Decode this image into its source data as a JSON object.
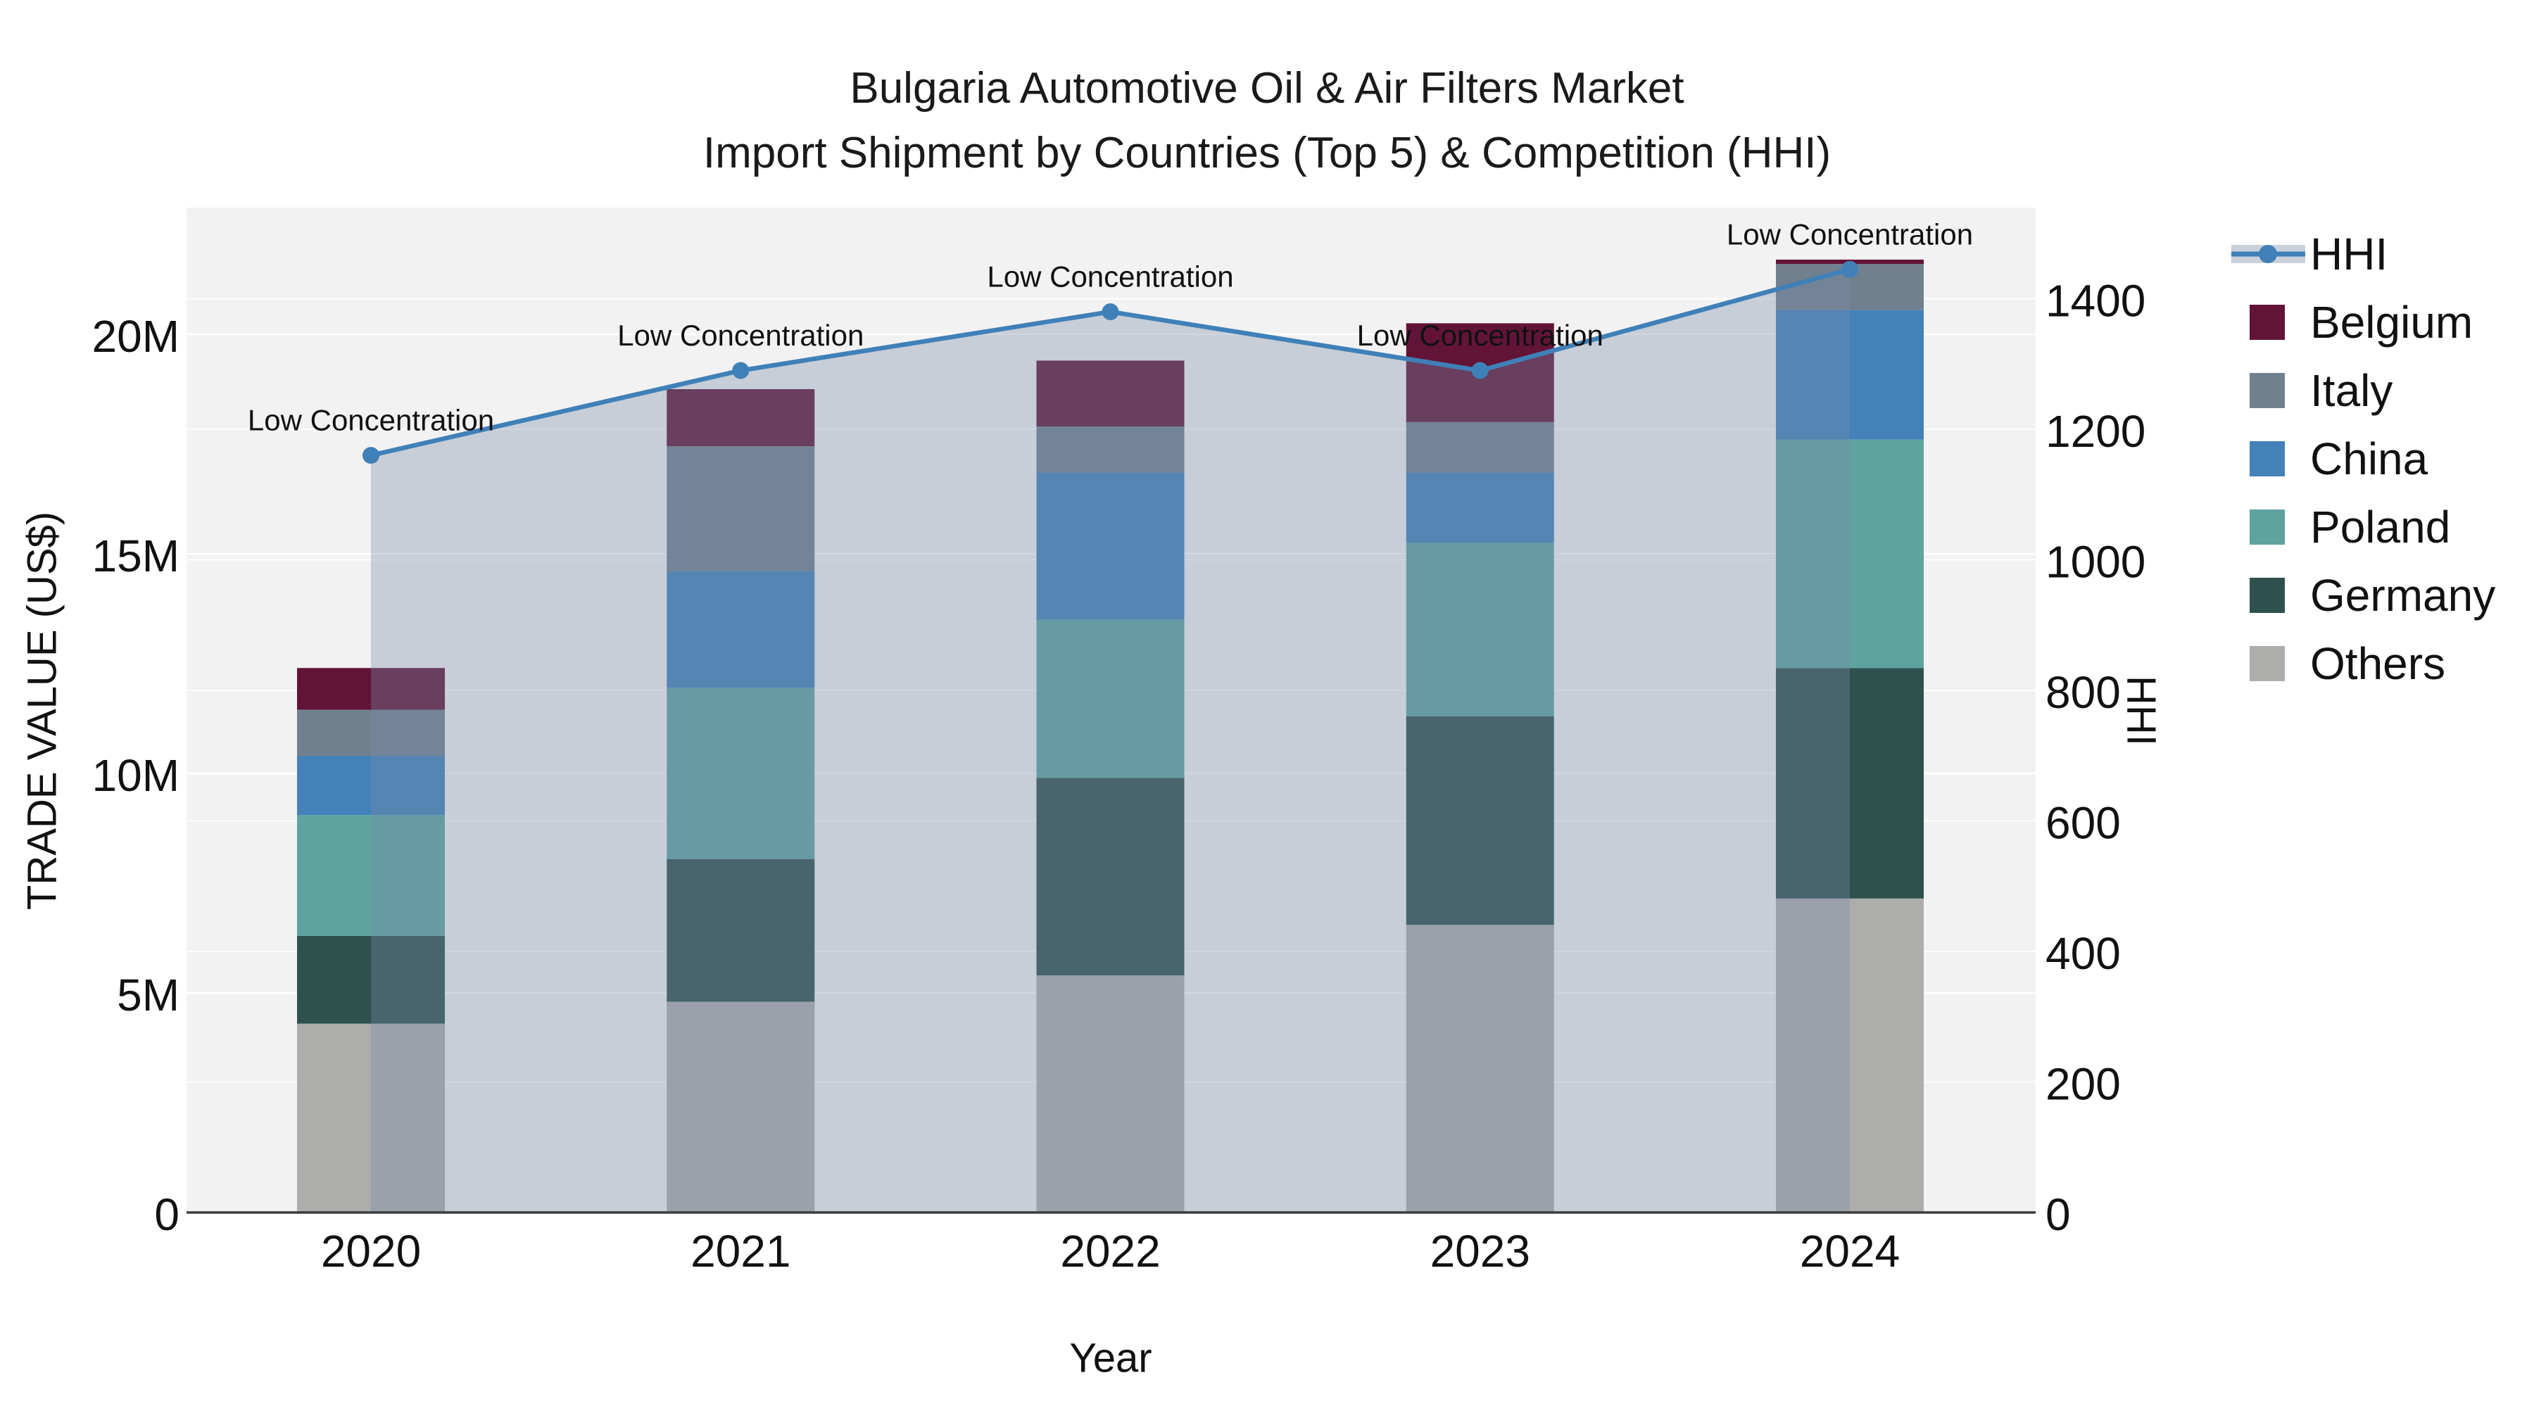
{
  "title": {
    "line1": "Bulgaria Automotive Oil & Air Filters Market",
    "line2": "Import Shipment by Countries (Top 5) & Competition (HHI)"
  },
  "axes": {
    "x_title": "Year",
    "y_left_title": "TRADE VALUE (US$)",
    "y_right_title": "HHI",
    "y_left_ticks": [
      {
        "label": "0",
        "value": 0
      },
      {
        "label": "5M",
        "value": 5
      },
      {
        "label": "10M",
        "value": 10
      },
      {
        "label": "15M",
        "value": 15
      },
      {
        "label": "20M",
        "value": 20
      }
    ],
    "y_right_ticks": [
      0,
      200,
      400,
      600,
      800,
      1000,
      1200,
      1400
    ]
  },
  "chart_data": {
    "type": "combo-stacked-bar-line",
    "categories": [
      "2020",
      "2021",
      "2022",
      "2023",
      "2024"
    ],
    "bar_value_unit": "M US$ (trade value, left axis)",
    "series": [
      {
        "name": "Others",
        "color": "#ADADAB",
        "values": [
          4.3,
          4.8,
          5.4,
          6.55,
          7.15
        ]
      },
      {
        "name": "Germany",
        "color": "#2E514D",
        "values": [
          2.0,
          3.25,
          4.5,
          4.75,
          5.25
        ]
      },
      {
        "name": "Poland",
        "color": "#5EA3A0",
        "values": [
          2.75,
          3.9,
          3.6,
          3.95,
          5.2
        ]
      },
      {
        "name": "China",
        "color": "#4381B8",
        "values": [
          1.35,
          2.65,
          3.35,
          1.6,
          2.95
        ]
      },
      {
        "name": "Italy",
        "color": "#71808F",
        "values": [
          1.05,
          2.85,
          1.05,
          1.15,
          1.05
        ]
      },
      {
        "name": "Belgium",
        "color": "#621437",
        "values": [
          0.95,
          1.3,
          1.5,
          2.25,
          0.1
        ]
      }
    ],
    "totals": [
      12.4,
      18.75,
      19.4,
      20.25,
      21.7
    ],
    "line_series": {
      "name": "HHI",
      "axis": "right",
      "color": "#4080B8",
      "area_fill_color": "rgba(120,140,170,0.35)",
      "values": [
        1160,
        1290,
        1380,
        1290,
        1445
      ]
    },
    "annotations": [
      "Low Concentration",
      "Low Concentration",
      "Low Concentration",
      "Low Concentration",
      "Low Concentration"
    ],
    "y_left_range": [
      0,
      22.9
    ],
    "y_right_range": [
      0,
      1540
    ],
    "grid": true,
    "legend_position": "right"
  },
  "legend": {
    "items": [
      {
        "label": "HHI",
        "type": "line",
        "color": "#4080B8"
      },
      {
        "label": "Belgium",
        "type": "swatch",
        "color": "#621437"
      },
      {
        "label": "Italy",
        "type": "swatch",
        "color": "#71808F"
      },
      {
        "label": "China",
        "type": "swatch",
        "color": "#4381B8"
      },
      {
        "label": "Poland",
        "type": "swatch",
        "color": "#5EA3A0"
      },
      {
        "label": "Germany",
        "type": "swatch",
        "color": "#2E514D"
      },
      {
        "label": "Others",
        "type": "swatch",
        "color": "#ADADAB"
      }
    ]
  },
  "colors": {
    "plot_bg": "#F2F2F2",
    "grid_line": "#FFFFFF",
    "axis_line": "#3C3C3C",
    "text": "#111111",
    "hhi_legend_band": "#C9D1DC"
  }
}
